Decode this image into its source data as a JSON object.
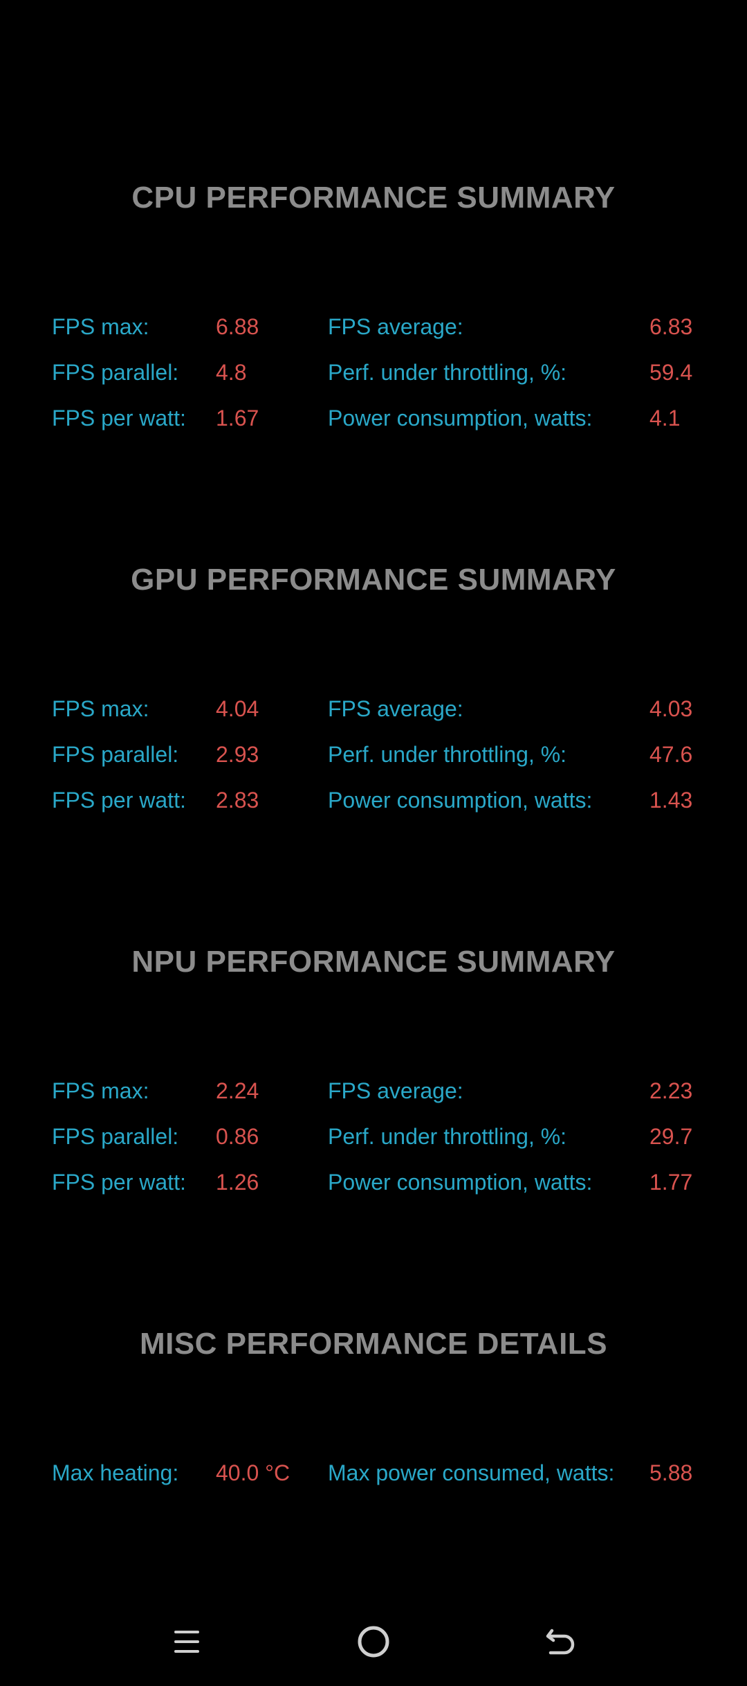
{
  "sections": [
    {
      "title": "CPU PERFORMANCE SUMMARY",
      "left": [
        {
          "label": "FPS max:",
          "value": "6.88"
        },
        {
          "label": "FPS parallel:",
          "value": "4.8"
        },
        {
          "label": "FPS per watt:",
          "value": "1.67"
        }
      ],
      "right": [
        {
          "label": "FPS average:",
          "value": "6.83"
        },
        {
          "label": "Perf. under throttling, %:",
          "value": "59.4"
        },
        {
          "label": "Power consumption, watts:",
          "value": "4.1"
        }
      ]
    },
    {
      "title": "GPU PERFORMANCE SUMMARY",
      "left": [
        {
          "label": "FPS max:",
          "value": "4.04"
        },
        {
          "label": "FPS parallel:",
          "value": "2.93"
        },
        {
          "label": "FPS per watt:",
          "value": "2.83"
        }
      ],
      "right": [
        {
          "label": "FPS average:",
          "value": "4.03"
        },
        {
          "label": "Perf. under throttling, %:",
          "value": "47.6"
        },
        {
          "label": "Power consumption, watts:",
          "value": "1.43"
        }
      ]
    },
    {
      "title": "NPU PERFORMANCE SUMMARY",
      "left": [
        {
          "label": "FPS max:",
          "value": "2.24"
        },
        {
          "label": "FPS parallel:",
          "value": "0.86"
        },
        {
          "label": "FPS per watt:",
          "value": "1.26"
        }
      ],
      "right": [
        {
          "label": "FPS average:",
          "value": "2.23"
        },
        {
          "label": "Perf. under throttling, %:",
          "value": "29.7"
        },
        {
          "label": "Power consumption, watts:",
          "value": "1.77"
        }
      ]
    },
    {
      "title": "MISC PERFORMANCE DETAILS",
      "left": [
        {
          "label": "Max heating:",
          "value": "40.0 °C"
        }
      ],
      "right": [
        {
          "label": "Max power consumed, watts:",
          "value": "5.88"
        }
      ]
    }
  ],
  "navbar": {
    "icons": [
      "menu-icon",
      "home-icon",
      "back-icon"
    ]
  },
  "colors": {
    "background": "#000000",
    "title": "#8c8c8c",
    "label": "#2aa8c8",
    "value": "#d9534f"
  }
}
